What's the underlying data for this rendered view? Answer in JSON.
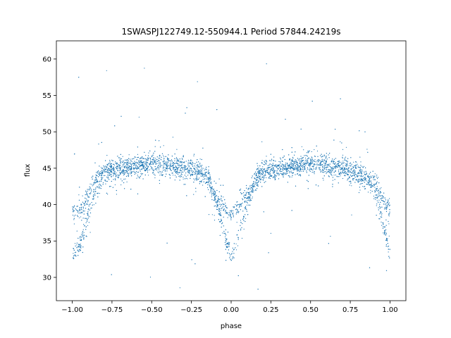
{
  "chart_data": {
    "type": "scatter",
    "title": "1SWASPJ122749.12-550944.1 Period 57844.24219s",
    "xlabel": "phase",
    "ylabel": "flux",
    "xlim": [
      -1.1,
      1.1
    ],
    "ylim": [
      26.8,
      62.5
    ],
    "x_ticks": [
      -1.0,
      -0.75,
      -0.5,
      -0.25,
      0.0,
      0.25,
      0.5,
      0.75,
      1.0
    ],
    "x_tick_labels": [
      "−1.00",
      "−0.75",
      "−0.50",
      "−0.25",
      "0.00",
      "0.25",
      "0.50",
      "0.75",
      "1.00"
    ],
    "y_ticks": [
      30,
      35,
      40,
      45,
      50,
      55,
      60
    ],
    "y_tick_labels": [
      "30",
      "35",
      "40",
      "45",
      "50",
      "55",
      "60"
    ],
    "grid": false,
    "point_color": "#1f77b4",
    "series": [
      {
        "light_curve_profile": {
          "x": [
            -1.0,
            -0.95,
            -0.9,
            -0.85,
            -0.8,
            -0.75,
            -0.6,
            -0.5,
            -0.4,
            -0.3,
            -0.2,
            -0.15,
            -0.1,
            -0.05,
            0.0,
            0.05,
            0.1,
            0.15,
            0.2,
            0.25,
            0.4,
            0.5,
            0.6,
            0.7,
            0.8,
            0.85,
            0.9,
            0.95,
            1.0
          ],
          "y": [
            33.0,
            34.5,
            38.5,
            42.5,
            44.2,
            44.7,
            45.3,
            45.6,
            45.4,
            45.0,
            44.5,
            43.8,
            41.0,
            37.0,
            32.5,
            35.5,
            40.0,
            43.2,
            44.5,
            44.8,
            45.3,
            45.5,
            45.3,
            45.0,
            44.4,
            43.5,
            42.0,
            38.0,
            33.0
          ]
        },
        "secondary_branch_profile": {
          "x": [
            -1.0,
            -0.95,
            -0.9,
            -0.85,
            -0.8,
            -0.05,
            0.0,
            0.05,
            0.1,
            0.9,
            0.95,
            1.0
          ],
          "y": [
            39.0,
            39.0,
            41.0,
            43.5,
            44.5,
            40.0,
            38.5,
            39.5,
            41.5,
            43.5,
            41.0,
            39.0
          ]
        },
        "scatter_y": 0.7,
        "outlier_range": [
          28,
          61
        ]
      }
    ]
  }
}
